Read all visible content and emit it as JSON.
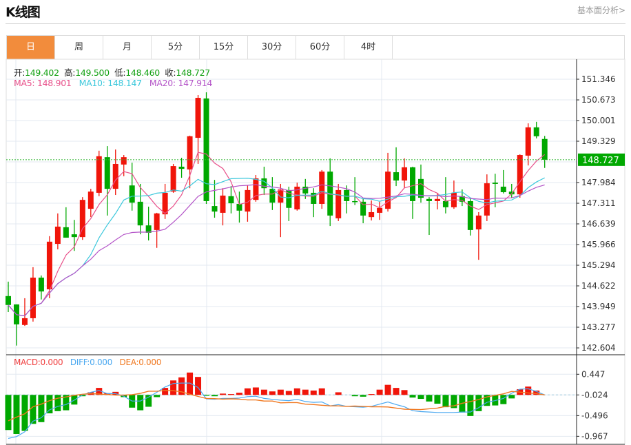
{
  "header": {
    "title": "K线图",
    "link": "基本面分析>"
  },
  "tabs": [
    {
      "label": "日",
      "active": true
    },
    {
      "label": "周"
    },
    {
      "label": "月"
    },
    {
      "label": "5分"
    },
    {
      "label": "15分"
    },
    {
      "label": "30分"
    },
    {
      "label": "60分"
    },
    {
      "label": "4时"
    }
  ],
  "legend": {
    "open_label": "开:",
    "open": "149.402",
    "high_label": "高:",
    "high": "149.500",
    "low_label": "低:",
    "low": "148.460",
    "close_label": "收:",
    "close": "148.727",
    "ma5": "MA5: 148.901",
    "ma10": "MA10: 148.147",
    "ma20": "MA20: 147.914"
  },
  "macd_legend": {
    "macd": "MACD:0.000",
    "diff": "DIFF:0.000",
    "dea": "DEA:0.000"
  },
  "colors": {
    "up": "#f0150a",
    "down": "#00a800",
    "ma5": "#e8508a",
    "ma10": "#3cc8dc",
    "ma20": "#b455c8",
    "macd": "#f04040",
    "diff": "#4aa8f0",
    "dea": "#f07820",
    "accent": "#f28c3c"
  },
  "chart_data": {
    "type": "candlestick",
    "current_price": "148.727",
    "y_ticks": [
      "151.346",
      "150.673",
      "150.001",
      "149.329",
      "147.984",
      "147.311",
      "146.639",
      "145.966",
      "145.294",
      "144.622",
      "143.949",
      "143.277",
      "142.604"
    ],
    "ylim": [
      142.604,
      151.346
    ],
    "ohlc": [
      [
        144.29,
        144.76,
        143.77,
        144.0
      ],
      [
        144.02,
        144.02,
        142.68,
        143.37
      ],
      [
        143.35,
        144.22,
        143.32,
        143.57
      ],
      [
        143.57,
        145.23,
        143.46,
        144.89
      ],
      [
        144.89,
        144.96,
        144.18,
        144.44
      ],
      [
        144.51,
        146.24,
        144.22,
        146.06
      ],
      [
        145.99,
        146.98,
        145.81,
        146.55
      ],
      [
        146.53,
        147.18,
        146.19,
        146.19
      ],
      [
        146.3,
        146.77,
        145.76,
        146.21
      ],
      [
        146.21,
        147.51,
        146.12,
        147.42
      ],
      [
        147.13,
        147.78,
        146.86,
        147.69
      ],
      [
        147.65,
        149.02,
        147.54,
        148.84
      ],
      [
        148.81,
        149.17,
        146.91,
        147.78
      ],
      [
        147.78,
        149.06,
        147.58,
        148.59
      ],
      [
        148.57,
        148.88,
        148.19,
        148.81
      ],
      [
        147.89,
        148.63,
        147.07,
        147.33
      ],
      [
        147.36,
        147.94,
        146.3,
        146.59
      ],
      [
        146.59,
        147.2,
        146.1,
        146.35
      ],
      [
        146.44,
        147.0,
        145.86,
        146.98
      ],
      [
        146.95,
        147.94,
        146.8,
        147.65
      ],
      [
        147.69,
        148.59,
        147.65,
        148.52
      ],
      [
        148.5,
        148.79,
        148.14,
        148.43
      ],
      [
        148.41,
        149.51,
        147.8,
        149.49
      ],
      [
        149.44,
        150.83,
        148.59,
        150.74
      ],
      [
        150.72,
        150.92,
        147.29,
        147.38
      ],
      [
        147.22,
        148.07,
        146.84,
        147.04
      ],
      [
        147.0,
        147.8,
        146.59,
        147.56
      ],
      [
        147.54,
        147.87,
        146.98,
        147.31
      ],
      [
        147.29,
        147.69,
        146.68,
        147.07
      ],
      [
        147.04,
        147.89,
        146.71,
        147.74
      ],
      [
        147.42,
        148.23,
        147.36,
        148.12
      ],
      [
        148.12,
        148.5,
        147.58,
        147.8
      ],
      [
        147.78,
        148.16,
        147.09,
        147.33
      ],
      [
        147.33,
        147.94,
        146.21,
        147.76
      ],
      [
        147.74,
        147.85,
        146.73,
        147.16
      ],
      [
        147.11,
        147.98,
        147.07,
        147.85
      ],
      [
        147.85,
        148.1,
        147.45,
        147.63
      ],
      [
        147.65,
        147.8,
        146.86,
        147.29
      ],
      [
        147.29,
        148.39,
        147.13,
        148.34
      ],
      [
        148.34,
        148.77,
        146.57,
        146.91
      ],
      [
        146.82,
        147.94,
        146.73,
        147.74
      ],
      [
        147.74,
        147.89,
        146.98,
        147.38
      ],
      [
        147.38,
        148.16,
        147.25,
        147.36
      ],
      [
        147.36,
        147.47,
        146.66,
        146.91
      ],
      [
        146.86,
        147.4,
        146.75,
        147.02
      ],
      [
        147.0,
        147.36,
        146.77,
        147.16
      ],
      [
        147.13,
        148.95,
        147.04,
        148.34
      ],
      [
        148.32,
        149.13,
        147.87,
        148.05
      ],
      [
        148.05,
        148.77,
        147.8,
        148.48
      ],
      [
        148.48,
        148.5,
        146.8,
        147.38
      ],
      [
        148.1,
        148.57,
        147.33,
        147.49
      ],
      [
        147.45,
        147.51,
        146.28,
        147.38
      ],
      [
        147.38,
        147.63,
        147.11,
        147.45
      ],
      [
        147.38,
        148.16,
        146.98,
        147.18
      ],
      [
        147.18,
        148.05,
        147.13,
        147.65
      ],
      [
        147.54,
        147.76,
        147.22,
        147.36
      ],
      [
        147.38,
        147.49,
        146.26,
        146.44
      ],
      [
        146.46,
        147.02,
        145.47,
        146.91
      ],
      [
        146.91,
        148.25,
        146.73,
        147.96
      ],
      [
        147.98,
        148.27,
        147.18,
        147.94
      ],
      [
        147.85,
        148.39,
        147.63,
        147.67
      ],
      [
        147.69,
        147.94,
        147.49,
        147.6
      ],
      [
        147.6,
        148.9,
        147.49,
        148.88
      ],
      [
        148.86,
        149.91,
        148.54,
        149.78
      ],
      [
        149.78,
        149.96,
        149.42,
        149.49
      ],
      [
        149.402,
        149.5,
        148.46,
        148.727
      ]
    ],
    "macd": {
      "y_ticks": [
        "0.447",
        "-0.024",
        "-0.496",
        "-0.967"
      ],
      "hist": [
        -0.8,
        -0.89,
        -0.82,
        -0.66,
        -0.62,
        -0.42,
        -0.37,
        -0.35,
        -0.22,
        -0.03,
        0.06,
        0.16,
        0.04,
        0.07,
        -0.05,
        -0.29,
        -0.35,
        -0.27,
        -0.05,
        0.16,
        0.33,
        0.4,
        0.51,
        0.41,
        -0.02,
        -0.03,
        0.03,
        0.02,
        0.05,
        0.15,
        0.17,
        0.12,
        0.08,
        0.12,
        0.09,
        0.15,
        0.12,
        0.1,
        0.15,
        0.0,
        0.06,
        0.0,
        -0.03,
        -0.04,
        0.02,
        0.12,
        0.23,
        0.16,
        0.11,
        -0.06,
        -0.09,
        -0.15,
        -0.2,
        -0.28,
        -0.3,
        -0.4,
        -0.48,
        -0.37,
        -0.25,
        -0.24,
        -0.21,
        -0.08,
        0.13,
        0.19,
        0.1,
        0.0
      ],
      "diff": [
        -0.99,
        -0.95,
        -0.84,
        -0.6,
        -0.52,
        -0.34,
        -0.26,
        -0.22,
        -0.12,
        0.0,
        0.06,
        0.1,
        0.03,
        0.03,
        -0.03,
        -0.14,
        -0.14,
        -0.05,
        0.06,
        0.18,
        0.26,
        0.27,
        0.27,
        0.17,
        -0.09,
        -0.1,
        -0.08,
        -0.08,
        -0.07,
        -0.04,
        -0.03,
        -0.08,
        -0.1,
        -0.12,
        -0.13,
        -0.1,
        -0.15,
        -0.17,
        -0.16,
        -0.25,
        -0.22,
        -0.26,
        -0.27,
        -0.28,
        -0.26,
        -0.21,
        -0.16,
        -0.22,
        -0.27,
        -0.36,
        -0.38,
        -0.39,
        -0.4,
        -0.4,
        -0.4,
        -0.39,
        -0.39,
        -0.29,
        -0.17,
        -0.13,
        -0.08,
        0.04,
        0.13,
        0.14,
        0.08,
        0.0
      ]
    }
  }
}
